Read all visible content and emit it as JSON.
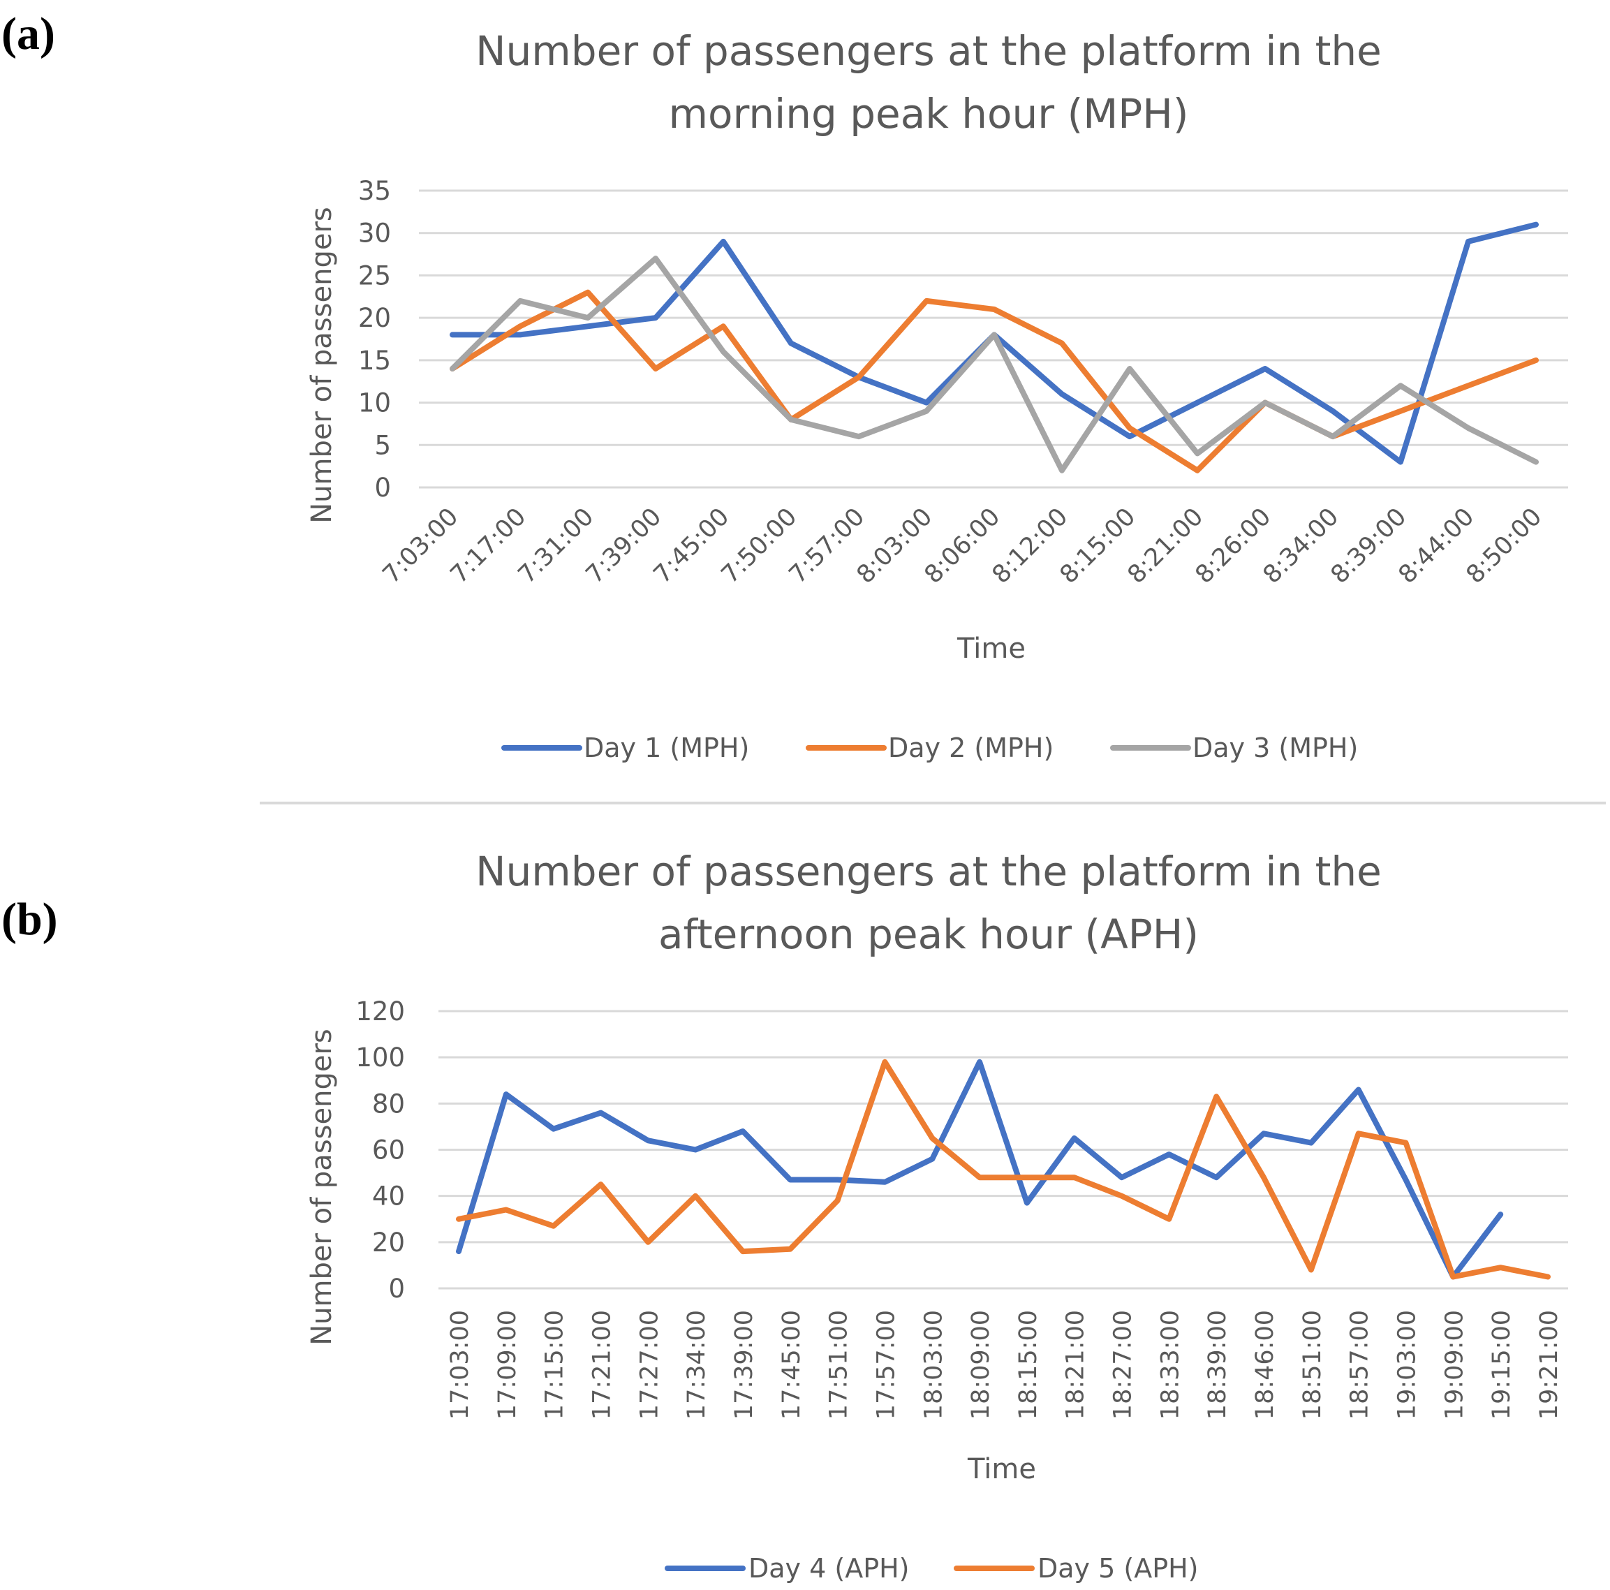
{
  "panels": {
    "a_label": "(a)",
    "b_label": "(b)"
  },
  "chart_data": [
    {
      "type": "line",
      "title_lines": [
        "Number of passengers at the platform in the",
        "morning peak hour (MPH)"
      ],
      "xlabel": "Time",
      "ylabel": "Number of passengers",
      "ylim": [
        0,
        35
      ],
      "yticks": [
        0,
        5,
        10,
        15,
        20,
        25,
        30,
        35
      ],
      "grid": true,
      "legend_position": "bottom",
      "categories": [
        "7:03:00",
        "7:17:00",
        "7:31:00",
        "7:39:00",
        "7:45:00",
        "7:50:00",
        "7:57:00",
        "8:03:00",
        "8:06:00",
        "8:12:00",
        "8:15:00",
        "8:21:00",
        "8:26:00",
        "8:34:00",
        "8:39:00",
        "8:44:00",
        "8:50:00"
      ],
      "series": [
        {
          "name": "Day 1 (MPH)",
          "color": "#4472C4",
          "values": [
            18,
            18,
            19,
            20,
            29,
            17,
            13,
            10,
            18,
            11,
            6,
            10,
            14,
            9,
            3,
            29,
            31
          ]
        },
        {
          "name": "Day 2 (MPH)",
          "color": "#ED7D31",
          "values": [
            14,
            19,
            23,
            14,
            19,
            8,
            13,
            22,
            21,
            17,
            7,
            2,
            10,
            6,
            9,
            12,
            15
          ]
        },
        {
          "name": "Day 3 (MPH)",
          "color": "#A5A5A5",
          "values": [
            14,
            22,
            20,
            27,
            16,
            8,
            6,
            9,
            18,
            2,
            14,
            4,
            10,
            6,
            12,
            7,
            3
          ]
        }
      ]
    },
    {
      "type": "line",
      "title_lines": [
        "Number of passengers at the platform in the",
        "afternoon peak hour (APH)"
      ],
      "xlabel": "Time",
      "ylabel": "Number of passengers",
      "ylim": [
        0,
        120
      ],
      "yticks": [
        0,
        20,
        40,
        60,
        80,
        100,
        120
      ],
      "grid": true,
      "legend_position": "bottom",
      "categories": [
        "17:03:00",
        "17:09:00",
        "17:15:00",
        "17:21:00",
        "17:27:00",
        "17:34:00",
        "17:39:00",
        "17:45:00",
        "17:51:00",
        "17:57:00",
        "18:03:00",
        "18:09:00",
        "18:15:00",
        "18:21:00",
        "18:27:00",
        "18:33:00",
        "18:39:00",
        "18:46:00",
        "18:51:00",
        "18:57:00",
        "19:03:00",
        "19:09:00",
        "19:15:00",
        "19:21:00"
      ],
      "series": [
        {
          "name": "Day 4 (APH)",
          "color": "#4472C4",
          "values": [
            16,
            84,
            69,
            76,
            64,
            60,
            68,
            47,
            47,
            46,
            56,
            98,
            37,
            65,
            48,
            58,
            48,
            67,
            63,
            86,
            47,
            5,
            32,
            null
          ]
        },
        {
          "name": "Day 5 (APH)",
          "color": "#ED7D31",
          "values": [
            30,
            34,
            27,
            45,
            20,
            40,
            16,
            17,
            38,
            98,
            65,
            48,
            48,
            48,
            40,
            30,
            83,
            48,
            8,
            67,
            63,
            5,
            9,
            5
          ]
        }
      ]
    }
  ]
}
